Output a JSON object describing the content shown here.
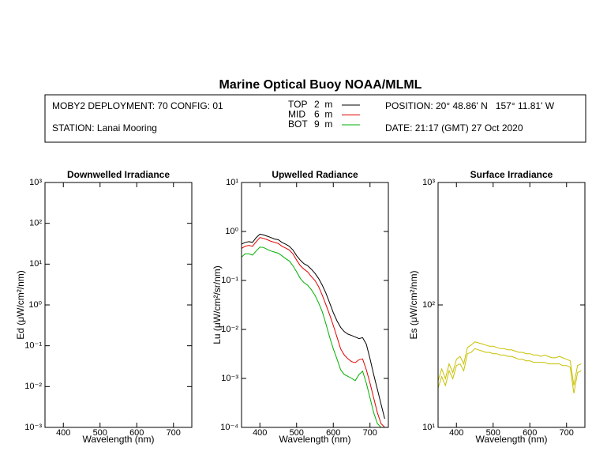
{
  "header": {
    "title": "Marine Optical Buoy NOAA/MLML",
    "deployment": "MOBY2 DEPLOYMENT: 70 CONFIG: 01",
    "station": "STATION: Lanai Mooring",
    "position": "POSITION: 20° 48.86' N   157° 11.81' W",
    "date": "DATE: 21:17 (GMT) 27 Oct 2020"
  },
  "chart_data": [
    {
      "type": "line",
      "title": "Downwelled Irradiance",
      "xlabel": "Wavelength (nm)",
      "ylabel": "Ed  (μW/cm²/nm)",
      "log_y": true,
      "xlim": [
        350,
        750
      ],
      "xticks": [
        400,
        500,
        600,
        700
      ],
      "ylim": [
        0.001,
        1000
      ],
      "yticks": [
        {
          "value": 0.001,
          "label": "10⁻³"
        },
        {
          "value": 0.01,
          "label": "10⁻²"
        },
        {
          "value": 0.1,
          "label": "10⁻¹"
        },
        {
          "value": 1,
          "label": "10⁰"
        },
        {
          "value": 10,
          "label": "10¹"
        },
        {
          "value": 100,
          "label": "10²"
        },
        {
          "value": 1000,
          "label": "10³"
        }
      ],
      "series": []
    },
    {
      "type": "line",
      "title": "Upwelled Radiance",
      "xlabel": "Wavelength (nm)",
      "ylabel": "Lu  (μW/cm²/sr/nm)",
      "log_y": true,
      "xlim": [
        350,
        750
      ],
      "xticks": [
        400,
        500,
        600,
        700
      ],
      "ylim": [
        0.0001,
        10
      ],
      "yticks": [
        {
          "value": 0.0001,
          "label": "10⁻⁴"
        },
        {
          "value": 0.001,
          "label": "10⁻³"
        },
        {
          "value": 0.01,
          "label": "10⁻²"
        },
        {
          "value": 0.1,
          "label": "10⁻¹"
        },
        {
          "value": 1,
          "label": "10⁰"
        },
        {
          "value": 10,
          "label": "10¹"
        }
      ],
      "x": [
        350,
        360,
        370,
        380,
        390,
        400,
        410,
        420,
        430,
        440,
        450,
        460,
        470,
        480,
        490,
        500,
        510,
        520,
        530,
        540,
        550,
        560,
        570,
        580,
        590,
        600,
        610,
        620,
        630,
        640,
        650,
        660,
        670,
        680,
        690,
        700,
        710,
        720,
        730,
        740
      ],
      "series": [
        {
          "name": "TOP",
          "depth": "2  m",
          "color": "#000000",
          "values": [
            0.55,
            0.6,
            0.62,
            0.6,
            0.75,
            0.88,
            0.85,
            0.8,
            0.75,
            0.7,
            0.68,
            0.6,
            0.55,
            0.5,
            0.42,
            0.32,
            0.26,
            0.22,
            0.2,
            0.17,
            0.14,
            0.11,
            0.08,
            0.055,
            0.035,
            0.022,
            0.015,
            0.011,
            0.009,
            0.008,
            0.0075,
            0.007,
            0.0065,
            0.0068,
            0.005,
            0.0025,
            0.0012,
            0.0006,
            0.0003,
            0.00015
          ]
        },
        {
          "name": "MID",
          "depth": "6  m",
          "color": "#e00000",
          "values": [
            0.45,
            0.5,
            0.52,
            0.5,
            0.62,
            0.75,
            0.72,
            0.68,
            0.63,
            0.6,
            0.57,
            0.5,
            0.46,
            0.42,
            0.35,
            0.26,
            0.2,
            0.17,
            0.15,
            0.12,
            0.1,
            0.075,
            0.05,
            0.032,
            0.02,
            0.012,
            0.007,
            0.004,
            0.003,
            0.0025,
            0.0022,
            0.0021,
            0.0024,
            0.0025,
            0.0015,
            0.0008,
            0.0004,
            0.0002,
            0.00012,
            0.0001
          ]
        },
        {
          "name": "BOT",
          "depth": "9  m",
          "color": "#00b000",
          "values": [
            0.3,
            0.35,
            0.35,
            0.33,
            0.4,
            0.48,
            0.47,
            0.43,
            0.4,
            0.38,
            0.36,
            0.32,
            0.28,
            0.25,
            0.2,
            0.15,
            0.11,
            0.09,
            0.08,
            0.065,
            0.05,
            0.035,
            0.023,
            0.013,
            0.007,
            0.004,
            0.0025,
            0.0015,
            0.0012,
            0.0011,
            0.001,
            0.0009,
            0.0012,
            0.0014,
            0.0008,
            0.0004,
            0.0002,
            0.00012,
            0.0001,
            0.0001
          ]
        }
      ]
    },
    {
      "type": "line",
      "title": "Surface Irradiance",
      "xlabel": "Wavelength (nm)",
      "ylabel": "Es  (μW/cm²/nm)",
      "log_y": true,
      "xlim": [
        350,
        750
      ],
      "xticks": [
        400,
        500,
        600,
        700
      ],
      "ylim": [
        10,
        1000
      ],
      "yticks": [
        {
          "value": 10,
          "label": "10¹"
        },
        {
          "value": 100,
          "label": "10²"
        },
        {
          "value": 1000,
          "label": "10³"
        }
      ],
      "x": [
        350,
        360,
        370,
        380,
        390,
        400,
        410,
        420,
        430,
        440,
        450,
        460,
        470,
        480,
        490,
        500,
        510,
        520,
        530,
        540,
        550,
        560,
        570,
        580,
        590,
        600,
        610,
        620,
        630,
        640,
        650,
        660,
        670,
        680,
        690,
        700,
        710,
        720,
        730,
        740
      ],
      "series": [
        {
          "color": "#c8c000",
          "values": [
            24,
            30,
            25,
            33,
            28,
            36,
            38,
            33,
            45,
            47,
            50,
            49,
            48,
            47,
            46,
            46,
            45,
            44,
            44,
            43,
            43,
            42,
            41,
            41,
            40,
            40,
            39,
            39,
            38,
            39,
            38,
            37,
            37,
            38,
            37,
            36,
            35,
            22,
            32,
            33
          ]
        },
        {
          "color": "#c8c000",
          "values": [
            21,
            26,
            22,
            29,
            25,
            32,
            33,
            29,
            40,
            41,
            44,
            43,
            42,
            41,
            41,
            40,
            40,
            39,
            39,
            38,
            38,
            37,
            36,
            36,
            35,
            35,
            34,
            34,
            34,
            34,
            33,
            33,
            33,
            33,
            32,
            32,
            31,
            19,
            28,
            29
          ]
        }
      ]
    }
  ]
}
